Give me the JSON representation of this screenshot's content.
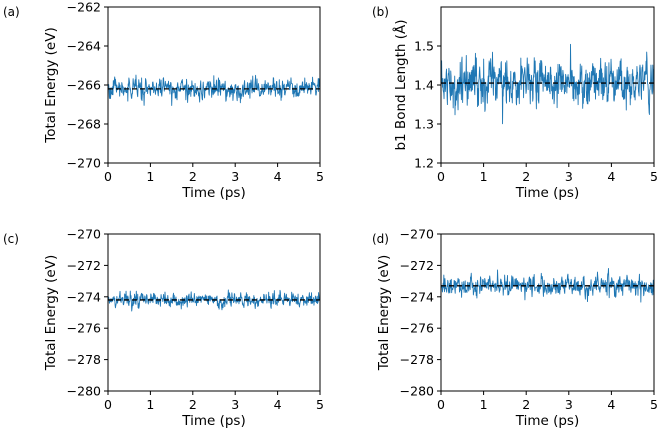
{
  "colors": {
    "series": "#1f77b4",
    "mean": "#000000",
    "axis": "#000000"
  },
  "chart_data": [
    {
      "panel": "(a)",
      "type": "line",
      "xlabel": "Time (ps)",
      "ylabel": "Total Energy (eV)",
      "xlim": [
        0,
        5
      ],
      "ylim": [
        -270,
        -262
      ],
      "xticks": [
        "0",
        "1",
        "2",
        "3",
        "4",
        "5"
      ],
      "yticks": [
        "−270",
        "−268",
        "−266",
        "−264",
        "−262"
      ],
      "series": [
        {
          "mean": -266.2,
          "amplitude": 0.35,
          "spike_start": 0.9,
          "spike_end": 0.6,
          "x_start": 0,
          "x_end": 5,
          "n_points": 600
        }
      ],
      "reference_line": -266.2
    },
    {
      "panel": "(b)",
      "type": "line",
      "xlabel": "Time (ps)",
      "ylabel": "b1 Bond Length (Å)",
      "xlim": [
        0,
        5
      ],
      "ylim": [
        1.2,
        1.6
      ],
      "xticks": [
        "0",
        "1",
        "2",
        "3",
        "4",
        "5"
      ],
      "yticks": [
        "1.2",
        "1.3",
        "1.4",
        "1.5"
      ],
      "series": [
        {
          "mean": 1.405,
          "amplitude": 0.038,
          "spike_start": 0.075,
          "spike_end": 0.075,
          "x_start": 0,
          "x_end": 5,
          "n_points": 700
        }
      ],
      "reference_line": 1.405
    },
    {
      "panel": "(c)",
      "type": "line",
      "xlabel": "Time (ps)",
      "ylabel": "Total Energy (eV)",
      "xlim": [
        0,
        5
      ],
      "ylim": [
        -280,
        -270
      ],
      "xticks": [
        "0",
        "1",
        "2",
        "3",
        "4",
        "5"
      ],
      "yticks": [
        "−280",
        "−278",
        "−276",
        "−274",
        "−272",
        "−270"
      ],
      "series": [
        {
          "mean": -274.2,
          "amplitude": 0.3,
          "spike_start": 0.8,
          "spike_end": 0.5,
          "x_start": 0,
          "x_end": 5,
          "n_points": 600
        }
      ],
      "reference_line": -274.2
    },
    {
      "panel": "(d)",
      "type": "line",
      "xlabel": "Time (ps)",
      "ylabel": "Total Energy (eV)",
      "xlim": [
        0,
        5
      ],
      "ylim": [
        -280,
        -270
      ],
      "xticks": [
        "0",
        "1",
        "2",
        "3",
        "4",
        "5"
      ],
      "yticks": [
        "−280",
        "−278",
        "−276",
        "−274",
        "−272",
        "−270"
      ],
      "series": [
        {
          "mean": -273.3,
          "amplitude": 0.45,
          "spike_start": 1.2,
          "spike_end": 0.9,
          "x_start": 0,
          "x_end": 5,
          "n_points": 600
        }
      ],
      "reference_line": -273.3
    }
  ]
}
